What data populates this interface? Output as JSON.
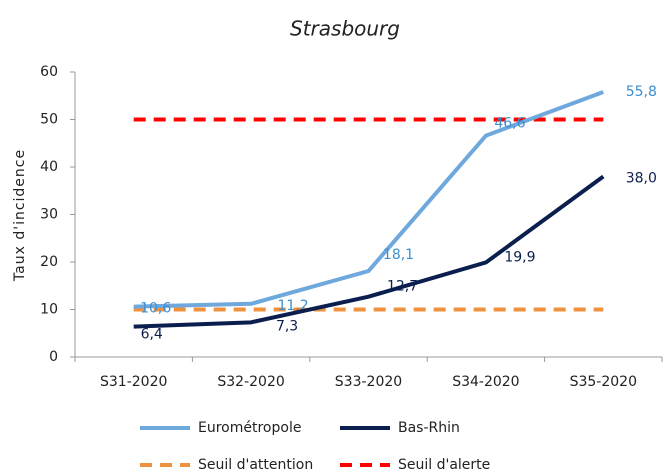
{
  "chart_data": {
    "type": "line",
    "title": "Strasbourg",
    "ylabel": "Taux d'incidence",
    "categories": [
      "S31-2020",
      "S32-2020",
      "S33-2020",
      "S34-2020",
      "S35-2020"
    ],
    "series": [
      {
        "name": "Seuil d'attention",
        "color": "#f0913f",
        "style": "dashed",
        "values": [
          10,
          10,
          10,
          10,
          10
        ]
      },
      {
        "name": "Seuil d'alerte",
        "color": "#ff0000",
        "style": "dashed",
        "values": [
          50,
          50,
          50,
          50,
          50
        ]
      },
      {
        "name": "Eurométropole",
        "color": "#6fa8dc",
        "style": "solid",
        "label_color": "#3d8fd0",
        "values": [
          10.6,
          11.2,
          18.1,
          46.6,
          55.8
        ],
        "value_labels": [
          "10,6",
          "11,2",
          "18,1",
          "46,6",
          "55,8"
        ]
      },
      {
        "name": "Bas-Rhin",
        "color": "#0b1f4f",
        "style": "solid",
        "label_color": "#0b1f4f",
        "values": [
          6.4,
          7.3,
          12.7,
          19.9,
          38.0
        ],
        "value_labels": [
          "6,4",
          "7,3",
          "12,7",
          "19,9",
          "38,0"
        ]
      }
    ],
    "ylim": [
      0,
      60
    ],
    "yticks": [
      0,
      10,
      20,
      30,
      40,
      50,
      60
    ],
    "grid": false
  }
}
